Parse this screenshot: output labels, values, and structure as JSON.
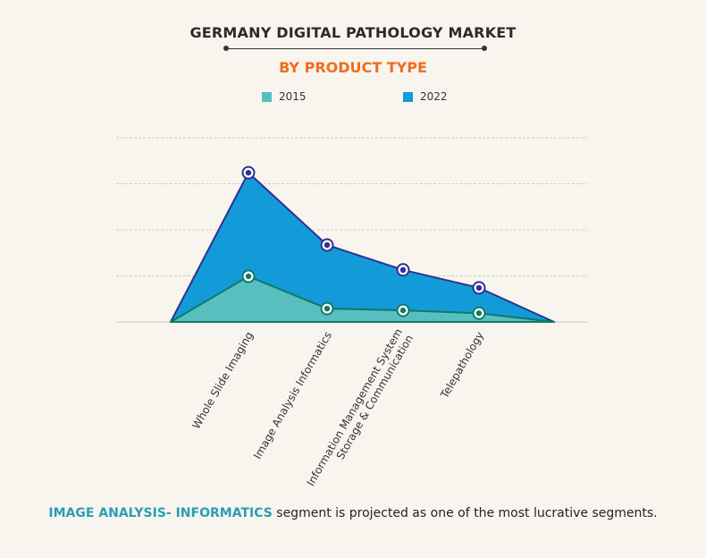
{
  "title": "GERMANY DIGITAL PATHOLOGY MARKET",
  "subtitle": "BY PRODUCT TYPE",
  "footer": {
    "highlight": "IMAGE ANALYSIS- INFORMATICS",
    "text": " segment is projected as one of the most lucrative segments."
  },
  "chart_data": {
    "type": "area",
    "categories": [
      "Whole Slide Imaging",
      "Image Analysis Informatics",
      "Information Management System Storage & Communication",
      "Telepathology"
    ],
    "category_lines": [
      [
        "Whole Slide Imaging"
      ],
      [
        "Image Analysis Informatics"
      ],
      [
        "Information Management System",
        "Storage & Communication"
      ],
      [
        "Telepathology"
      ]
    ],
    "series": [
      {
        "name": "2022",
        "values": [
          3.24,
          1.67,
          1.13,
          0.74
        ],
        "color": "#139bd9",
        "line": "#2e3192"
      },
      {
        "name": "2015",
        "values": [
          0.99,
          0.29,
          0.25,
          0.19
        ],
        "color": "#57bfc0",
        "line": "#0f7a66"
      }
    ],
    "legend": [
      "2015",
      "2022"
    ],
    "legend_colors": [
      "#57bfc0",
      "#139bd9"
    ],
    "ylim": [
      0,
      4
    ],
    "grid": true,
    "y_tick_labels": false,
    "legend_placement": "top"
  }
}
